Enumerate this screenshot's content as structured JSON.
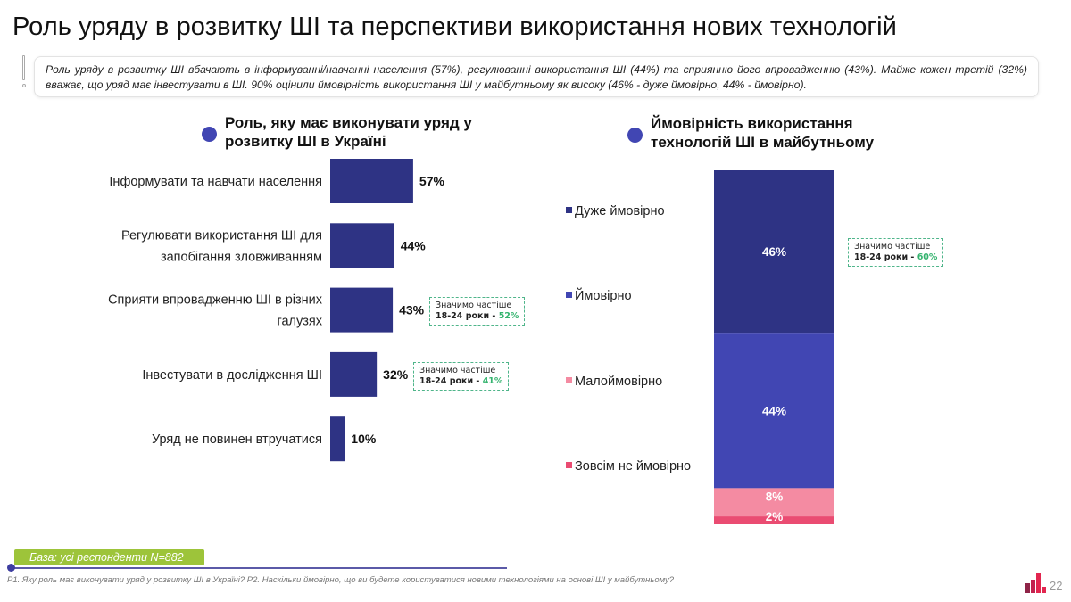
{
  "title": "Роль уряду в розвитку ШІ та перспективи використання нових технологій",
  "summary": "Роль уряду в розвитку ШІ вбачають в інформуванні/навчанні населення (57%), регулюванні використання ШІ (44%) та сприянню його впровадженню (43%). Майже кожен третій (32%) вважає, що уряд має інвестувати в ШІ. 90% оцінили ймовірність використання ШІ у майбутньому як високу (46% - дуже ймовірно, 44% - ймовірно).",
  "left_section": {
    "title": "Роль, яку має виконувати уряд у розвитку ШІ в Україні"
  },
  "right_section": {
    "title": "Ймовірність використання технологій ШІ в майбутньому"
  },
  "notes": {
    "line1": "Значимо частіше",
    "line2_prefix": "18-24 роки - ",
    "promote": "52%",
    "invest": "41%",
    "very_likely": "60%"
  },
  "chart_data": [
    {
      "type": "bar",
      "orientation": "horizontal",
      "title": "Роль, яку має виконувати уряд у розвитку ШІ в Україні",
      "categories": [
        [
          "Інформувати та навчати населення"
        ],
        [
          "Регулювати використання ШІ для",
          "запобігання зловживанням"
        ],
        [
          "Сприяти впровадженню ШІ в різних",
          "галузях"
        ],
        [
          "Інвестувати в дослідження ШІ"
        ],
        [
          "Уряд не повинен втручатися"
        ]
      ],
      "values": [
        57,
        44,
        43,
        32,
        10
      ],
      "value_labels": [
        "57%",
        "44%",
        "43%",
        "32%",
        "10%"
      ],
      "unit": "%",
      "color": "#2e3384",
      "grid": false
    },
    {
      "type": "bar",
      "stacked": true,
      "title": "Ймовірність використання технологій ШІ в майбутньому",
      "series": [
        {
          "name": "Дуже ймовірно",
          "value": 46,
          "label": "46%",
          "color": "#2e3384"
        },
        {
          "name": "Ймовірно",
          "value": 44,
          "label": "44%",
          "color": "#4146b3"
        },
        {
          "name": "Малоймовірно",
          "value": 8,
          "label": "8%",
          "color": "#f48ba2"
        },
        {
          "name": "Зовсім не ймовірно",
          "value": 2,
          "label": "2%",
          "color": "#ea4c72"
        }
      ],
      "ylim": [
        0,
        100
      ],
      "legend": "left",
      "grid": false
    }
  ],
  "footer": {
    "base": "База: усі респонденти N=882",
    "questions": "P1. Яку роль має виконувати уряд у розвитку ШІ в Україні? P2. Наскільки ймовірно, що ви будете користуватися новими технологіями на основі ШІ у майбутньому?",
    "page": "22"
  },
  "colors": {
    "accent": "#4146b3",
    "dark_bar": "#2e3384",
    "note_green": "#34b36e",
    "badge_green": "#9dc43a"
  }
}
